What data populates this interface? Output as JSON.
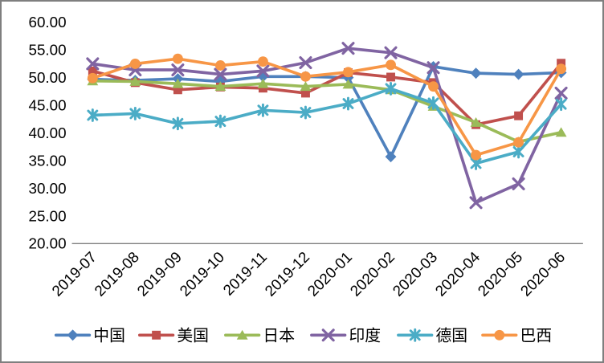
{
  "chart_data": {
    "type": "line",
    "title": "",
    "categories": [
      "2019-07",
      "2019-08",
      "2019-09",
      "2019-10",
      "2019-11",
      "2019-12",
      "2020-01",
      "2020-02",
      "2020-03",
      "2020-04",
      "2020-05",
      "2020-06"
    ],
    "series": [
      {
        "key": "china",
        "name": "中国",
        "color": "#4F81BD",
        "marker": "diamond",
        "values": [
          49.7,
          49.5,
          49.8,
          49.3,
          50.2,
          50.2,
          50.0,
          35.7,
          52.0,
          50.8,
          50.6,
          50.9
        ]
      },
      {
        "key": "usa",
        "name": "美国",
        "color": "#C0504D",
        "marker": "square",
        "values": [
          51.2,
          49.1,
          47.8,
          48.3,
          48.1,
          47.2,
          50.9,
          50.1,
          49.1,
          41.5,
          43.1,
          52.6
        ]
      },
      {
        "key": "japan",
        "name": "日本",
        "color": "#9BBB59",
        "marker": "triangle",
        "values": [
          49.4,
          49.3,
          48.9,
          48.4,
          48.9,
          48.4,
          48.8,
          47.8,
          44.8,
          41.9,
          38.4,
          40.1
        ]
      },
      {
        "key": "india",
        "name": "印度",
        "color": "#8064A2",
        "marker": "x",
        "values": [
          52.5,
          51.4,
          51.4,
          50.6,
          51.2,
          52.7,
          55.3,
          54.5,
          51.8,
          27.4,
          30.8,
          47.2
        ]
      },
      {
        "key": "germany",
        "name": "德国",
        "color": "#4BACC6",
        "marker": "asterisk",
        "values": [
          43.2,
          43.5,
          41.7,
          42.1,
          44.1,
          43.7,
          45.3,
          48.0,
          45.4,
          34.5,
          36.6,
          45.2
        ]
      },
      {
        "key": "brazil",
        "name": "巴西",
        "color": "#F79646",
        "marker": "circle",
        "values": [
          49.9,
          52.5,
          53.4,
          52.2,
          52.9,
          50.2,
          51.0,
          52.3,
          48.4,
          36.0,
          38.3,
          51.6
        ]
      }
    ],
    "ylim": [
      20,
      60
    ],
    "y_tick_step": 5,
    "y_tick_labels": [
      "60.00",
      "55.00",
      "50.00",
      "45.00",
      "40.00",
      "35.00",
      "30.00",
      "25.00",
      "20.00"
    ],
    "grid": false,
    "legend_position": "bottom",
    "axis_color": "#7F7F7F",
    "text_color": "#000000",
    "frame_color": "#7F7F7F"
  }
}
